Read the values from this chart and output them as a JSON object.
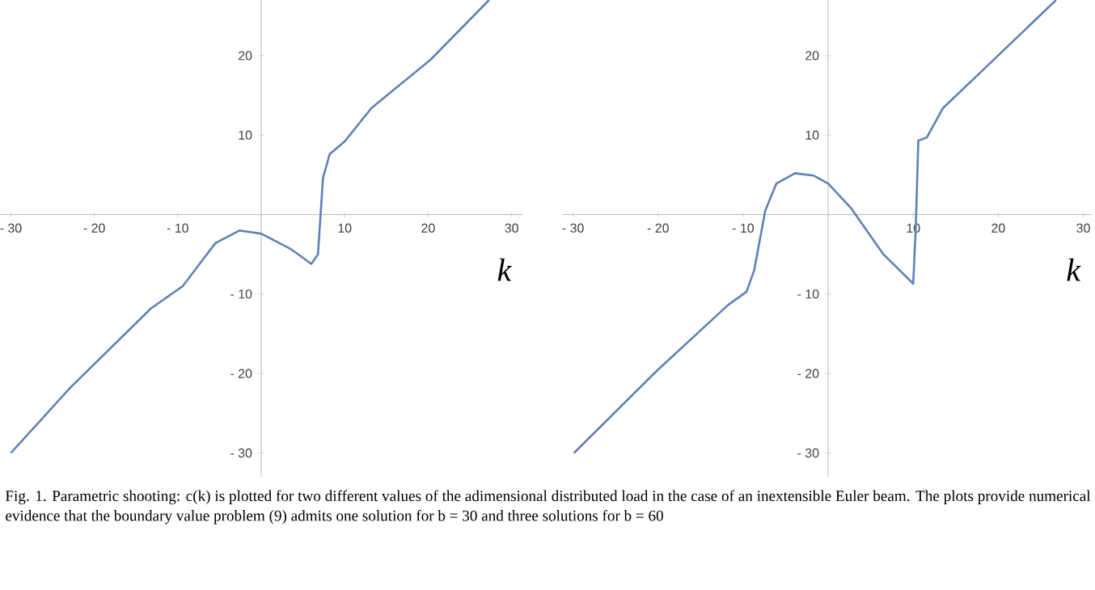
{
  "chart_data": [
    {
      "type": "line",
      "xlabel": "k",
      "x": [
        -30,
        -22.9,
        -13.2,
        -9.4,
        -5.5,
        -2.6,
        0,
        3.5,
        6.0,
        6.8,
        7.4,
        8.2,
        10,
        13.2,
        20.3,
        27.3
      ],
      "series": [
        {
          "color": "#5e81b5",
          "values": [
            -30,
            -21.8,
            -11.8,
            -9.0,
            -3.6,
            -2.0,
            -2.4,
            -4.3,
            -6.2,
            -5.0,
            4.6,
            7.6,
            9.2,
            13.4,
            19.5,
            27
          ]
        }
      ],
      "xlim": [
        -31.3,
        31.3
      ],
      "ylim": [
        -33,
        27
      ],
      "xticks": [
        {
          "value": -30,
          "label": "- 30"
        },
        {
          "value": -20,
          "label": "- 20"
        },
        {
          "value": -10,
          "label": "- 10"
        },
        10,
        20,
        30
      ],
      "yticks": [
        {
          "value": -30,
          "label": "- 30"
        },
        {
          "value": -20,
          "label": "- 20"
        },
        {
          "value": -10,
          "label": "- 10"
        },
        10,
        20
      ],
      "annotations": [
        "Fig. 1. Parametric shooting: c(k) is plotted for two different values of the adimensional distributed load in the case of an inextensible Euler beam. The plots provide numerical evidence that the boundary value problem (9) admits one solution for b = 30 and three solutions for b = 60"
      ]
    },
    {
      "type": "line",
      "xlabel": "k",
      "x": [
        -29.9,
        -20.1,
        -11.8,
        -9.6,
        -8.7,
        -7.4,
        -6.1,
        -3.9,
        -1.7,
        0,
        2.7,
        6.5,
        10,
        10.3,
        10.6,
        11.6,
        13.5,
        18.5,
        26.8
      ],
      "series": [
        {
          "color": "#5e81b5",
          "values": [
            -30,
            -19.6,
            -11.4,
            -9.7,
            -7.0,
            0.5,
            3.9,
            5.2,
            4.9,
            3.9,
            0.8,
            -5.0,
            -8.7,
            -1.6,
            9.3,
            9.7,
            13.4,
            18.5,
            27
          ]
        }
      ],
      "xlim": [
        -31.2,
        31
      ],
      "ylim": [
        -33,
        27
      ],
      "xticks": [
        {
          "value": -30,
          "label": "- 30"
        },
        {
          "value": -20,
          "label": "- 20"
        },
        {
          "value": -10,
          "label": "- 10"
        },
        10,
        20,
        30
      ],
      "yticks": [
        {
          "value": -30,
          "label": "- 30"
        },
        {
          "value": -20,
          "label": "- 20"
        },
        {
          "value": -10,
          "label": "- 10"
        },
        10,
        20
      ]
    }
  ]
}
